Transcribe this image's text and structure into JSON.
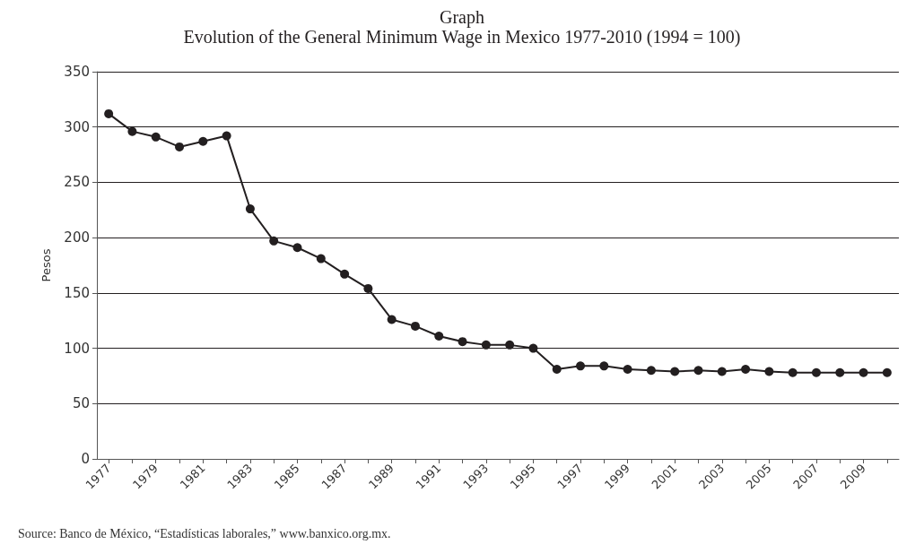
{
  "chart_data": {
    "type": "line",
    "title": "Graph",
    "subtitle": "Evolution of the General Minimum Wage in Mexico 1977-2010 (1994 = 100)",
    "ylabel": "Pesos",
    "categories": [
      "1977",
      null,
      "1979",
      null,
      "1981",
      null,
      "1983",
      null,
      "1985",
      null,
      "1987",
      null,
      "1989",
      null,
      "1991",
      null,
      "1993",
      null,
      "1995",
      null,
      "1997",
      null,
      "1999",
      null,
      "2001",
      null,
      "2003",
      null,
      "2005",
      null,
      "2007",
      null,
      "2009",
      null
    ],
    "series": [
      {
        "color": "#231f20",
        "values": [
          312,
          296,
          291,
          282,
          287,
          292,
          226,
          197,
          191,
          181,
          167,
          154,
          126,
          120,
          111,
          106,
          103,
          103,
          100,
          81,
          84,
          84,
          81,
          80,
          79,
          80,
          79,
          81,
          79,
          78,
          78,
          78,
          78,
          78
        ]
      }
    ],
    "ylim": [
      0,
      350
    ],
    "yticks": [
      0,
      50,
      100,
      150,
      200,
      250,
      300,
      350
    ],
    "grid": "y",
    "marker": "circle",
    "line_style": "solid",
    "annotations": [
      "Source: Banco de México, “Estadísticas laborales,” www.banxico.org.mx."
    ]
  }
}
